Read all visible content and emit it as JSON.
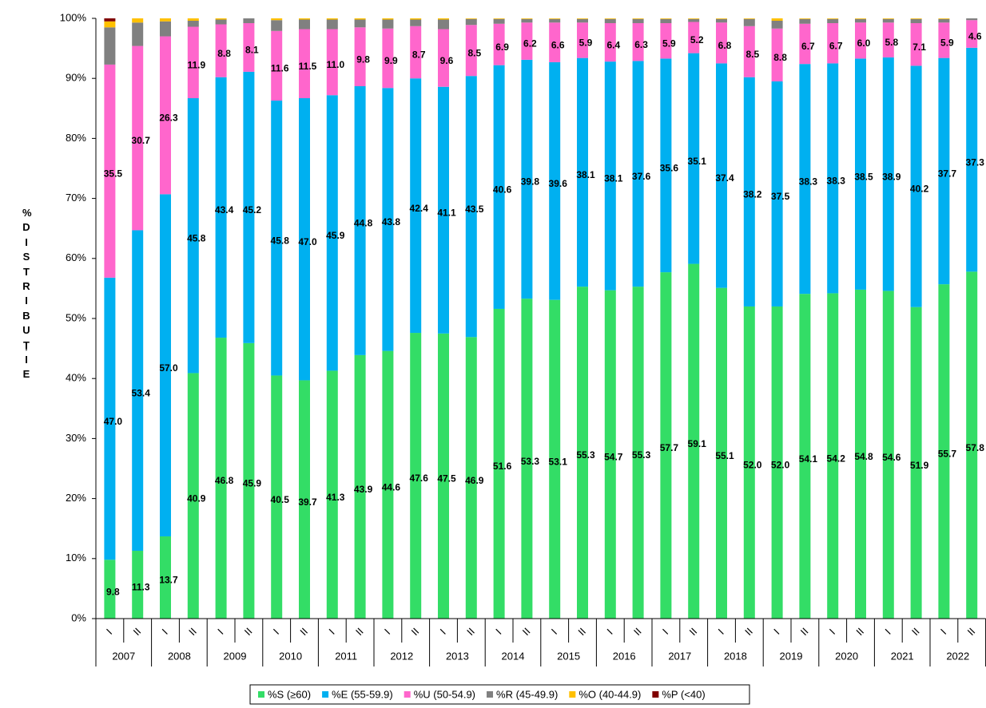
{
  "chart_data": {
    "type": "stacked_bar",
    "y_label": "% DISTRIBUȚIE",
    "categories": [
      "I",
      "II",
      "I",
      "II",
      "I",
      "II",
      "I",
      "II",
      "I",
      "II",
      "I",
      "II",
      "I",
      "II",
      "I",
      "II",
      "I",
      "II",
      "I",
      "II",
      "I",
      "II",
      "I",
      "II",
      "I",
      "II",
      "I",
      "II",
      "I",
      "II",
      "I",
      "II"
    ],
    "years": [
      "2007",
      "2008",
      "2009",
      "2010",
      "2011",
      "2012",
      "2013",
      "2014",
      "2015",
      "2016",
      "2017",
      "2018",
      "2019",
      "2020",
      "2021",
      "2022"
    ],
    "ylim": [
      0,
      100
    ],
    "yticks": [
      {
        "value": 0,
        "label": "0%"
      },
      {
        "value": 10,
        "label": "10%"
      },
      {
        "value": 20,
        "label": "20%"
      },
      {
        "value": 30,
        "label": "30%"
      },
      {
        "value": 40,
        "label": "40%"
      },
      {
        "value": 50,
        "label": "50%"
      },
      {
        "value": 60,
        "label": "60%"
      },
      {
        "value": 70,
        "label": "70%"
      },
      {
        "value": 80,
        "label": "80%"
      },
      {
        "value": 90,
        "label": "90%"
      },
      {
        "value": 100,
        "label": "100%"
      }
    ],
    "series": [
      {
        "name": "%S (≥60)",
        "color": "#33dd66",
        "values": [
          9.8,
          11.3,
          13.7,
          40.9,
          46.8,
          45.9,
          40.5,
          39.7,
          41.3,
          43.9,
          44.6,
          47.6,
          47.5,
          46.9,
          51.6,
          53.3,
          53.1,
          55.3,
          54.7,
          55.3,
          57.7,
          59.1,
          55.1,
          52.0,
          52.0,
          54.1,
          54.2,
          54.8,
          54.6,
          51.9,
          55.7,
          57.8
        ],
        "value_labels": [
          "9.8",
          "11.3",
          "13.7",
          "40.9",
          "46.8",
          "45.9",
          "40.5",
          "39.7",
          "41.3",
          "43.9",
          "44.6",
          "47.6",
          "47.5",
          "46.9",
          "51.6",
          "53.3",
          "53.1",
          "55.3",
          "54.7",
          "55.3",
          "57.7",
          "59.1",
          "55.1",
          "52.0",
          "52.0",
          "54.1",
          "54.2",
          "54.8",
          "54.6",
          "51.9",
          "55.7",
          "57.8"
        ]
      },
      {
        "name": "%E (55-59.9)",
        "color": "#00b0f0",
        "values": [
          47.0,
          53.4,
          57.0,
          45.8,
          43.4,
          45.2,
          45.8,
          47.0,
          45.9,
          44.8,
          43.8,
          42.4,
          41.1,
          43.5,
          40.6,
          39.8,
          39.6,
          38.1,
          38.1,
          37.6,
          35.6,
          35.1,
          37.4,
          38.2,
          37.5,
          38.3,
          38.3,
          38.5,
          38.9,
          40.2,
          37.7,
          37.3
        ],
        "value_labels": [
          "47.0",
          "53.4",
          "57.0",
          "45.8",
          "43.4",
          "45.2",
          "45.8",
          "47.0",
          "45.9",
          "44.8",
          "43.8",
          "42.4",
          "41.1",
          "43.5",
          "40.6",
          "39.8",
          "39.6",
          "38.1",
          "38.1",
          "37.6",
          "35.6",
          "35.1",
          "37.4",
          "38.2",
          "37.5",
          "38.3",
          "38.3",
          "38.5",
          "38.9",
          "40.2",
          "37.7",
          "37.3"
        ]
      },
      {
        "name": "%U (50-54.9)",
        "color": "#ff66cc",
        "values": [
          35.5,
          30.7,
          26.3,
          11.9,
          8.8,
          8.1,
          11.6,
          11.5,
          11.0,
          9.8,
          9.9,
          8.7,
          9.6,
          8.5,
          6.9,
          6.2,
          6.6,
          5.9,
          6.4,
          6.3,
          5.9,
          5.2,
          6.8,
          8.5,
          8.8,
          6.7,
          6.7,
          6.0,
          5.8,
          7.1,
          5.9,
          4.6
        ],
        "value_labels": [
          "35.5",
          "30.7",
          "26.3",
          "11.9",
          "8.8",
          "8.1",
          "11.6",
          "11.5",
          "11.0",
          "9.8",
          "9.9",
          "8.7",
          "9.6",
          "8.5",
          "6.9",
          "6.2",
          "6.6",
          "5.9",
          "6.4",
          "6.3",
          "5.9",
          "5.2",
          "6.8",
          "8.5",
          "8.8",
          "6.7",
          "6.7",
          "6.0",
          "5.8",
          "7.1",
          "5.9",
          "4.6"
        ]
      },
      {
        "name": "%R (45-49.9)",
        "color": "#808080",
        "values": [
          6.2,
          3.9,
          2.5,
          1.0,
          0.8,
          0.8,
          1.8,
          1.6,
          1.6,
          1.3,
          1.5,
          1.1,
          1.6,
          1.0,
          0.8,
          0.6,
          0.6,
          0.6,
          0.7,
          0.7,
          0.7,
          0.5,
          0.6,
          1.2,
          1.3,
          0.8,
          0.7,
          0.6,
          0.6,
          0.7,
          0.6,
          0.3
        ]
      },
      {
        "name": "%O (40-44.9)",
        "color": "#ffc000",
        "values": [
          1.0,
          0.7,
          0.5,
          0.4,
          0.2,
          0,
          0.3,
          0.2,
          0.2,
          0.2,
          0.2,
          0.2,
          0.2,
          0.1,
          0.1,
          0.1,
          0.1,
          0.1,
          0.1,
          0.1,
          0.1,
          0.1,
          0.1,
          0.1,
          0.4,
          0.1,
          0.1,
          0.1,
          0.1,
          0.1,
          0.1,
          0
        ]
      },
      {
        "name": "%P (<40)",
        "color": "#800000",
        "values": [
          0.5,
          0,
          0,
          0,
          0,
          0,
          0,
          0,
          0,
          0,
          0,
          0,
          0,
          0,
          0,
          0,
          0,
          0,
          0,
          0,
          0,
          0,
          0,
          0,
          0,
          0,
          0,
          0,
          0,
          0,
          0,
          0
        ]
      }
    ]
  }
}
